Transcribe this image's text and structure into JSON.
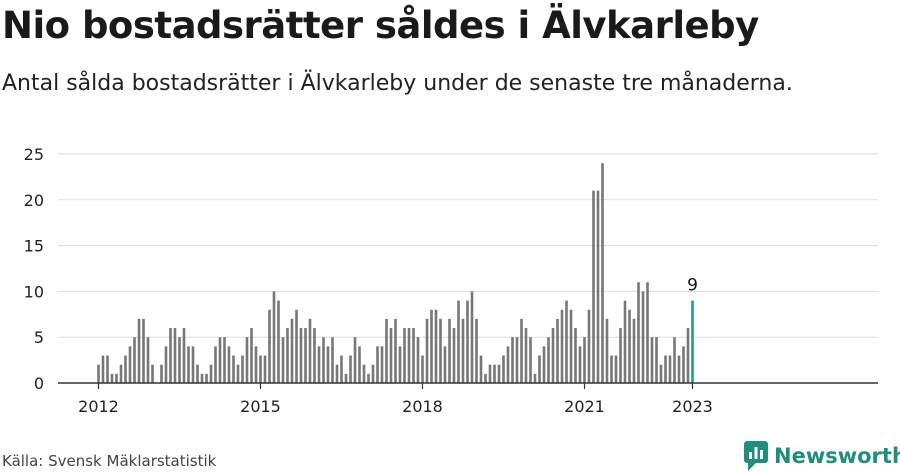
{
  "title": "Nio bostadsrätter såldes i Älvkarleby",
  "subtitle": "Antal sålda bostadsrätter i Älvkarleby under de senaste tre månaderna.",
  "source": "Källa: Svensk Mäklarstatistik",
  "brand": "Newsworthy",
  "colors": {
    "bar": "#777777",
    "highlight": "#1f9e89",
    "grid": "#dddddd",
    "brand": "#1f8f7c"
  },
  "chart_data": {
    "type": "bar",
    "x_start": "2012-01",
    "ylim": [
      0,
      25
    ],
    "y_ticks": [
      0,
      5,
      10,
      15,
      20,
      25
    ],
    "x_ticks": [
      "2012",
      "2015",
      "2018",
      "2021",
      "2023"
    ],
    "grid": true,
    "values": [
      2,
      3,
      3,
      1,
      1,
      2,
      3,
      4,
      5,
      7,
      7,
      5,
      2,
      0,
      2,
      4,
      6,
      6,
      5,
      6,
      4,
      4,
      2,
      1,
      1,
      2,
      4,
      5,
      5,
      4,
      3,
      2,
      3,
      5,
      6,
      4,
      3,
      3,
      8,
      10,
      9,
      5,
      6,
      7,
      8,
      6,
      6,
      7,
      6,
      4,
      5,
      4,
      5,
      2,
      3,
      1,
      3,
      5,
      4,
      2,
      1,
      2,
      4,
      4,
      7,
      6,
      7,
      4,
      6,
      6,
      6,
      5,
      3,
      7,
      8,
      8,
      7,
      4,
      7,
      6,
      9,
      7,
      9,
      10,
      7,
      3,
      1,
      2,
      2,
      2,
      3,
      4,
      5,
      5,
      7,
      6,
      5,
      1,
      3,
      4,
      5,
      6,
      7,
      8,
      9,
      8,
      6,
      4,
      5,
      8,
      21,
      21,
      24,
      7,
      3,
      3,
      6,
      9,
      8,
      7,
      11,
      10,
      11,
      5,
      5,
      2,
      3,
      3,
      5,
      3,
      4,
      6,
      9
    ],
    "highlight_last": true,
    "annotation": {
      "label": "9"
    }
  }
}
